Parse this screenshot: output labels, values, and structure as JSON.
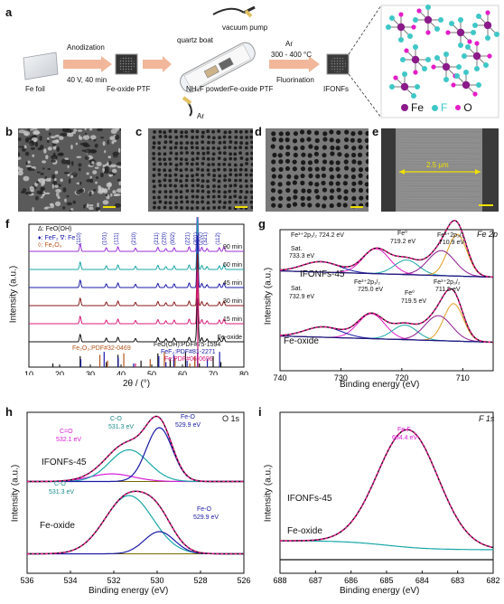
{
  "panels": {
    "a": {
      "label": "a",
      "fe_foil": "Fe foil",
      "step1_top": "Anodization",
      "step1_bottom": "40 V, 40 min",
      "fe_oxide_ptf": "Fe-oxide PTF",
      "vacuum_pump": "vacuum pump",
      "quartz_boat": "quartz boat",
      "nh4f_powder": "NH₄F powder",
      "fe_oxide_ptf_boat": "Fe-oxide PTF",
      "ar_in": "Ar",
      "step2_top": "Ar",
      "step2_mid": "300 - 400 °C",
      "step2_bottom": "Fluorination",
      "ifonfs": "IFONFs",
      "legend_fe": "Fe",
      "legend_f": "F",
      "legend_o": "O"
    },
    "b": {
      "label": "b"
    },
    "c": {
      "label": "c"
    },
    "d": {
      "label": "d"
    },
    "e": {
      "label": "e",
      "scale_text": "2.5 μm"
    },
    "f": {
      "label": "f",
      "legend1": "Δ: FeO(OH)",
      "legend2": "♦: FeF₂  ∇: Fe",
      "legend3": "◊: Fe₂O₃",
      "ref1": "Fe₂O₃:PDF#32-0469",
      "ref2": "FeO(OH):PDF#75-1594",
      "ref3": "FeF₂:PDF#81-2271",
      "ref4": "Fe:PDF#06-0696",
      "xlabel": "2θ / (°)",
      "ylabel": "Intensity (a.u.)",
      "hkl": [
        "(110)",
        "(101)",
        "(111)",
        "(210)",
        "(211)",
        "(220)",
        "(002)",
        "(221)",
        "(301)",
        "(202)",
        "(321)",
        "(112)"
      ]
    },
    "g": {
      "label": "g",
      "title": "Fe 2p",
      "sat_top": "Sat.",
      "sat_top_val": "733.3 eV",
      "fe3_2p12_top": "Fe³⁺2p₁/₂ 724.2 eV",
      "fe0_top": "Fe⁰",
      "fe0_top_val": "719.2 eV",
      "fe3_2p32_top": "Fe³⁺2p₃/₂",
      "fe3_2p32_top_val": "710.9 eV",
      "sample_top": "IFONFs-45",
      "sat_bot": "Sat.",
      "sat_bot_val": "732.9 eV",
      "fe3_2p12_bot": "Fe³⁺2p₁/₂",
      "fe3_2p12_bot_val": "725.0 eV",
      "fe0_bot": "Fe⁰",
      "fe0_bot_val": "719.5 eV",
      "fe3_2p32_bot": "Fe³⁺2p₃/₂",
      "fe3_2p32_bot_val": "711.5 eV",
      "sample_bot": "Fe-oxide",
      "xlabel": "Binding energy (eV)",
      "ylabel": "Intensity (a.u.)"
    },
    "h": {
      "label": "h",
      "title": "O 1s",
      "co_top": "C=O",
      "co_top_val": "532.1 eV",
      "c_o_top": "C-O",
      "c_o_top_val": "531.3 eV",
      "feo_top": "Fe-O",
      "feo_top_val": "529.9 eV",
      "sample_top": "IFONFs-45",
      "c_o_bot": "C-O",
      "c_o_bot_val": "531.3 eV",
      "feo_bot": "Fe-O",
      "feo_bot_val": "529.9 eV",
      "sample_bot": "Fe-oxide",
      "xlabel": "Binding energy (eV)",
      "ylabel": "Intensity (a.u.)"
    },
    "i": {
      "label": "i",
      "title": "F 1s",
      "fef": "Fe-F",
      "fef_val": "684.4 eV",
      "sample_top": "IFONFs-45",
      "sample_bot": "Fe-oxide",
      "xlabel": "Binding energy (eV)",
      "ylabel": "Intensity (a.u.)"
    }
  },
  "chart_data": [
    {
      "id": "f",
      "type": "line",
      "xlabel": "2θ / (°)",
      "ylabel": "Intensity (a.u.)",
      "xlim": [
        10,
        80
      ],
      "xticks": [
        10,
        20,
        30,
        40,
        50,
        60,
        70,
        80
      ],
      "series": [
        {
          "name": "90 min",
          "color": "#9b30d9"
        },
        {
          "name": "60 min",
          "color": "#19a7a7"
        },
        {
          "name": "45 min",
          "color": "#1a1aa8"
        },
        {
          "name": "30 min",
          "color": "#8b1a1a"
        },
        {
          "name": "15 min",
          "color": "#d81b7a"
        },
        {
          "name": "Fe-oxide",
          "color": "#111111"
        }
      ],
      "peaks": [
        26.7,
        35.2,
        39.0,
        44.7,
        52.0,
        54.6,
        57.3,
        62.2,
        64.9,
        66.3,
        68.0,
        72.0,
        73.5
      ]
    },
    {
      "id": "g",
      "type": "line",
      "xlabel": "Binding energy (eV)",
      "ylabel": "Intensity (a.u.)",
      "xlim": [
        740,
        705
      ],
      "xticks": [
        740,
        730,
        720,
        710
      ]
    },
    {
      "id": "h",
      "type": "line",
      "xlabel": "Binding energy (eV)",
      "ylabel": "Intensity (a.u.)",
      "xlim": [
        536,
        526
      ],
      "xticks": [
        536,
        534,
        532,
        530,
        528,
        526
      ]
    },
    {
      "id": "i",
      "type": "line",
      "xlabel": "Binding energy (eV)",
      "ylabel": "Intensity (a.u.)",
      "xlim": [
        688,
        682
      ],
      "xticks": [
        688,
        687,
        686,
        685,
        684,
        683,
        682
      ]
    }
  ],
  "colors": {
    "arrow": "#f2b79a",
    "fe": "#8b1a8b",
    "f": "#3fc7c7",
    "o": "#e41ec8",
    "envelope": "#e41e8c",
    "fit": "#111111"
  }
}
